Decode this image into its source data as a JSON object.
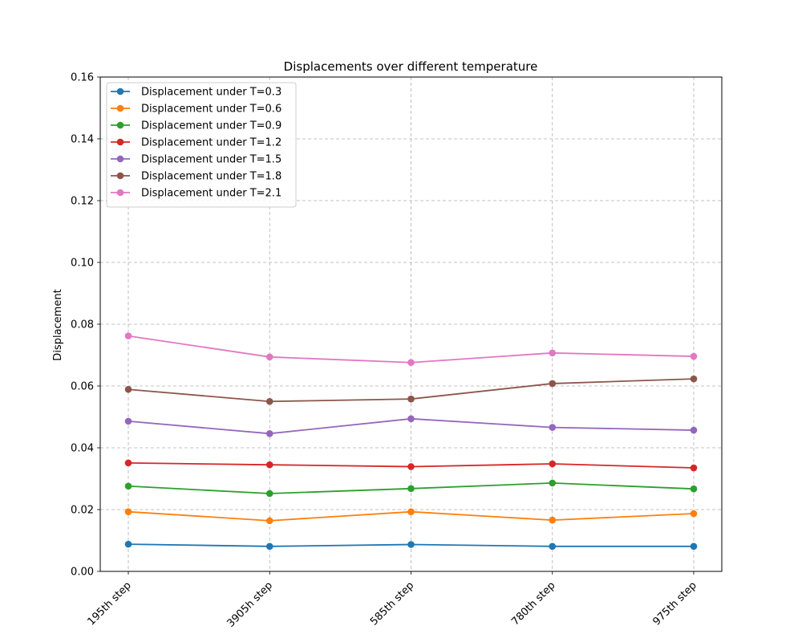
{
  "chart_data": {
    "type": "line",
    "title": "Displacements over different temperature",
    "xlabel": "",
    "ylabel": "Displacement",
    "categories": [
      "195th step",
      "3905h step",
      "585th step",
      "780th step",
      "975th step"
    ],
    "ylim": [
      0.0,
      0.16
    ],
    "yticks": [
      "0.00",
      "0.02",
      "0.04",
      "0.06",
      "0.08",
      "0.10",
      "0.12",
      "0.14",
      "0.16"
    ],
    "grid": true,
    "legend_position": "top-left",
    "series": [
      {
        "name": "Displacement under T=0.3",
        "color": "#1f77b4",
        "values": [
          0.0088,
          0.0081,
          0.0087,
          0.0081,
          0.0081
        ]
      },
      {
        "name": "Displacement under T=0.6",
        "color": "#ff7f0e",
        "values": [
          0.0193,
          0.0164,
          0.0193,
          0.0166,
          0.0187
        ]
      },
      {
        "name": "Displacement under T=0.9",
        "color": "#2ca02c",
        "values": [
          0.0276,
          0.0252,
          0.0268,
          0.0286,
          0.0267
        ]
      },
      {
        "name": "Displacement under T=1.2",
        "color": "#d62728",
        "values": [
          0.0351,
          0.0345,
          0.0339,
          0.0348,
          0.0335
        ]
      },
      {
        "name": "Displacement under T=1.5",
        "color": "#9467bd",
        "values": [
          0.0486,
          0.0446,
          0.0494,
          0.0466,
          0.0457
        ]
      },
      {
        "name": "Displacement under T=1.8",
        "color": "#8c564b",
        "values": [
          0.0589,
          0.055,
          0.0558,
          0.0608,
          0.0623
        ]
      },
      {
        "name": "Displacement under T=2.1",
        "color": "#e377c2",
        "values": [
          0.0762,
          0.0694,
          0.0676,
          0.0707,
          0.0696
        ]
      }
    ]
  }
}
